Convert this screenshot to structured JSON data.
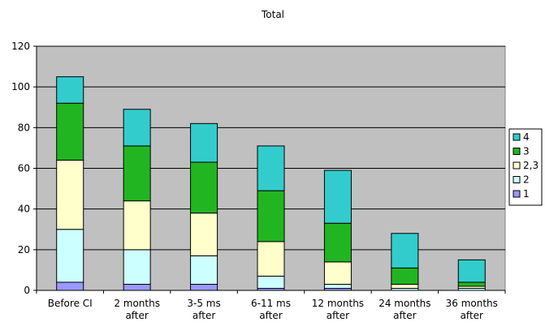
{
  "chart_data": {
    "type": "bar",
    "stacked": true,
    "title": "Total",
    "xlabel": "",
    "ylabel": "",
    "ylim": [
      0,
      120
    ],
    "yticks": [
      0,
      20,
      40,
      60,
      80,
      100,
      120
    ],
    "ytick_labels": [
      "0",
      "20",
      "40",
      "60",
      "80",
      "100",
      "120"
    ],
    "grid": true,
    "legend_position": "right",
    "categories": [
      [
        "Before CI"
      ],
      [
        "2 months",
        "after"
      ],
      [
        "3-5 ms",
        "after"
      ],
      [
        "6-11 ms",
        "after"
      ],
      [
        "12 months",
        "after"
      ],
      [
        "24 months",
        "after"
      ],
      [
        "36 months",
        "after"
      ]
    ],
    "series": [
      {
        "name": "1",
        "color": "#9999ff",
        "values": [
          4,
          3,
          3,
          1,
          1,
          0,
          0
        ]
      },
      {
        "name": "2",
        "color": "#ccffff",
        "values": [
          26,
          17,
          14,
          6,
          2,
          1,
          1
        ]
      },
      {
        "name": "2,3",
        "color": "#ffffcc",
        "values": [
          34,
          24,
          21,
          17,
          11,
          2,
          1
        ]
      },
      {
        "name": "3",
        "color": "#22b522",
        "values": [
          28,
          27,
          25,
          25,
          19,
          8,
          2
        ]
      },
      {
        "name": "4",
        "color": "#33cccc",
        "values": [
          13,
          18,
          19,
          22,
          26,
          17,
          11
        ]
      }
    ],
    "plot_background": "#c0c0c0"
  }
}
